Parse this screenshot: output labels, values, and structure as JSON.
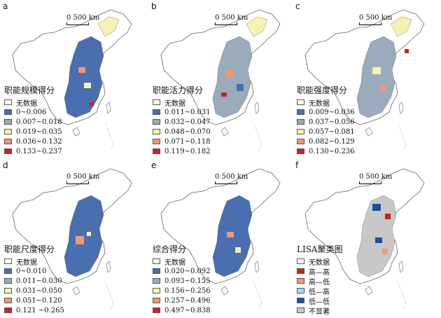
{
  "scale_label": "0  500 km",
  "colors": {
    "no_data": "#ffffff",
    "c1": "#4a6fb0",
    "c2": "#9aabbb",
    "c3": "#f7f2b3",
    "c4": "#ee9977",
    "c5": "#cc2222",
    "hh": "#cc1f1f",
    "hl": "#ee9a76",
    "lh": "#a9d3ee",
    "ll": "#1e4f9c",
    "ns": "#c8c8c8"
  },
  "panels": [
    {
      "id": "a",
      "title": "职能规模得分",
      "legend": [
        "无数据",
        "0~0.006",
        "0.007~0.018",
        "0.019~0.035",
        "0.036~0.132",
        "0.133~0.237"
      ]
    },
    {
      "id": "b",
      "title": "职能活力得分",
      "legend": [
        "无数据",
        "0.011~0.031",
        "0.032~0.047",
        "0.048~0.070",
        "0.071~0.118",
        "0.119~0.182"
      ]
    },
    {
      "id": "c",
      "title": "职能强度得分",
      "legend": [
        "无数据",
        "0.009~0.036",
        "0.037~0.056",
        "0.057~0.081",
        "0.082~0.129",
        "0.130~0.236"
      ]
    },
    {
      "id": "d",
      "title": "职能尺度得分",
      "legend": [
        "无数据",
        "0~0.010",
        "0.011~0.030",
        "0.031~0.050",
        "0.051~0.120",
        "0.121 ~0.265"
      ]
    },
    {
      "id": "e",
      "title": "综合得分",
      "legend": [
        "无数据",
        "0.020~0.092",
        "0.093~0.155",
        "0.156~0.256",
        "0.257~0.496",
        "0.497~0.838"
      ]
    },
    {
      "id": "f",
      "title": "LISA聚类图",
      "legend": [
        "无数据",
        "高—高",
        "高—低",
        "低—高",
        "低—低",
        "不显著"
      ]
    }
  ]
}
